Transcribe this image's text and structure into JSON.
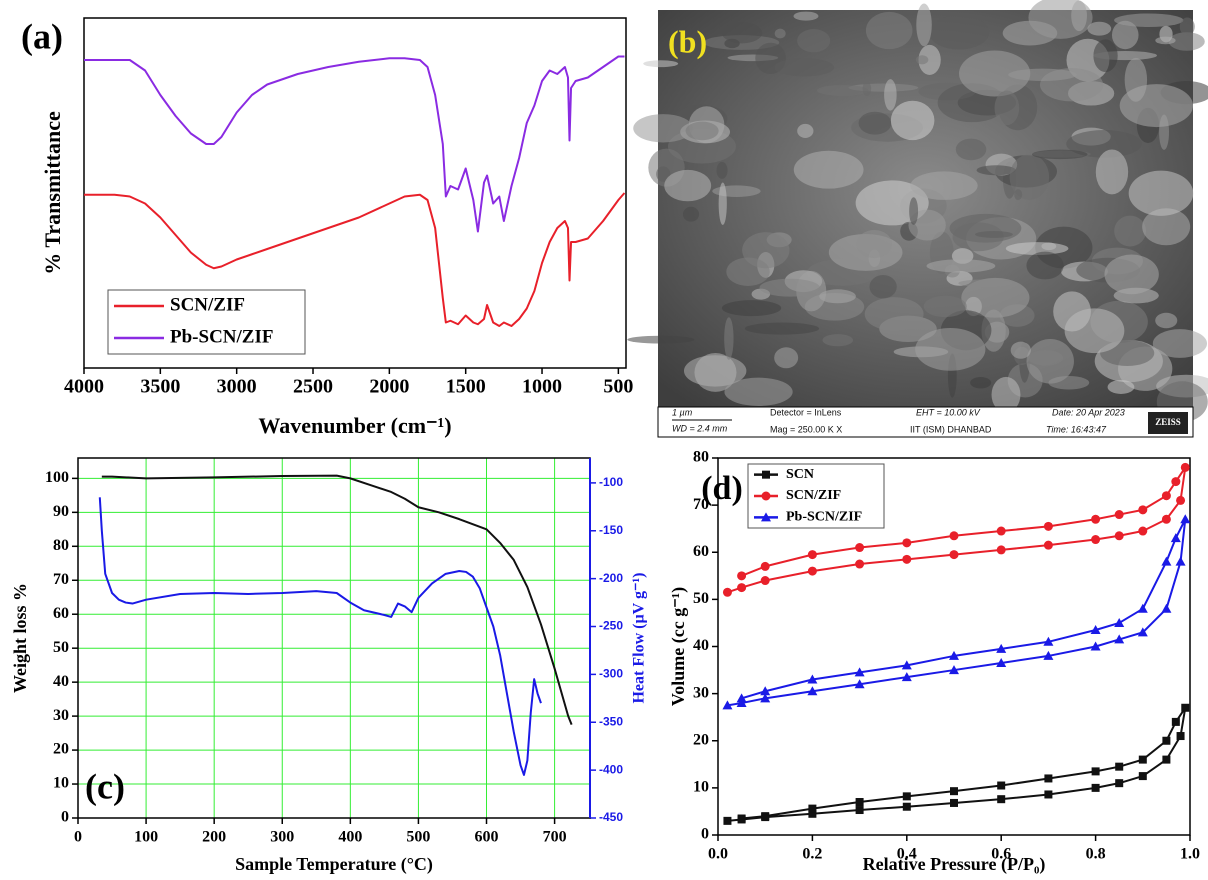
{
  "chart_data": [
    {
      "type": "line",
      "annotation": "(a)",
      "x_label": "Wavenumber (cm⁻¹)",
      "y_label": "% Transmittance",
      "xlim": [
        4000,
        450
      ],
      "xticks": [
        4000,
        3500,
        3000,
        2500,
        2000,
        1500,
        1000,
        500
      ],
      "ylim": [
        0,
        100
      ],
      "legend": "lower left",
      "grid": false,
      "x": [
        4000,
        3800,
        3700,
        3600,
        3500,
        3400,
        3300,
        3200,
        3150,
        3100,
        3000,
        2900,
        2800,
        2600,
        2400,
        2200,
        2000,
        1900,
        1800,
        1750,
        1700,
        1650,
        1630,
        1600,
        1550,
        1500,
        1450,
        1420,
        1380,
        1360,
        1320,
        1280,
        1250,
        1200,
        1150,
        1100,
        1050,
        1000,
        950,
        900,
        850,
        830,
        820,
        810,
        780,
        700,
        600,
        500,
        460
      ],
      "series": [
        {
          "name": "SCN/ZIF",
          "color": "#e8202a",
          "values": [
            49.5,
            49.5,
            49,
            47,
            43,
            38,
            33,
            29.5,
            28.5,
            29,
            31,
            32.5,
            34,
            37,
            40,
            43,
            47,
            49,
            49.5,
            48,
            40,
            20,
            13,
            13.5,
            12.5,
            15,
            13,
            12.5,
            14,
            18,
            13,
            12,
            13,
            12,
            14,
            17,
            22,
            30,
            36,
            40,
            42,
            40,
            25,
            36,
            36,
            37,
            42,
            48,
            50
          ]
        },
        {
          "name": "Pb-SCN/ZIF",
          "color": "#8a2be2",
          "values": [
            88,
            88,
            88,
            85,
            78,
            72,
            67,
            64,
            64,
            66,
            73,
            78,
            81,
            84,
            86,
            87.5,
            88.5,
            88.5,
            88,
            86,
            78,
            64,
            49,
            52,
            51,
            57,
            48,
            39,
            53,
            55,
            47,
            49,
            42,
            52,
            60,
            70,
            75,
            82,
            85,
            84,
            86,
            83,
            65,
            80,
            82,
            83,
            86,
            89,
            89
          ]
        }
      ]
    },
    {
      "type": "line",
      "annotation": "(c)",
      "x_label": "Sample Temperature (°C)",
      "y_label": "Weight loss %",
      "y2_label": "Heat Flow (µV g⁻¹)",
      "xlim": [
        0,
        752
      ],
      "xticks": [
        0,
        100,
        200,
        300,
        400,
        500,
        600,
        700
      ],
      "ylim": [
        0,
        106
      ],
      "yticks": [
        0,
        10,
        20,
        30,
        40,
        50,
        60,
        70,
        80,
        90,
        100
      ],
      "y2lim": [
        -450,
        -74
      ],
      "y2ticks": [
        -100,
        -150,
        -200,
        -250,
        -300,
        -350,
        -400,
        -450
      ],
      "grid": true,
      "grid_color": "#33ee33",
      "series": [
        {
          "color": "#111111",
          "x": [
            35,
            50,
            100,
            200,
            300,
            380,
            400,
            430,
            460,
            480,
            500,
            530,
            560,
            600,
            620,
            640,
            660,
            680,
            700,
            720,
            725
          ],
          "values": [
            100.5,
            100.5,
            100,
            100.3,
            100.7,
            100.8,
            100,
            98,
            96,
            94,
            91.5,
            90,
            88,
            85,
            81,
            76,
            68,
            57,
            44,
            30,
            27.5
          ]
        },
        {
          "color": "#1a1ae6",
          "axis": "y2",
          "x": [
            32,
            35,
            40,
            50,
            60,
            70,
            80,
            100,
            150,
            200,
            250,
            300,
            350,
            380,
            400,
            420,
            450,
            460,
            470,
            480,
            490,
            500,
            520,
            540,
            560,
            570,
            580,
            590,
            600,
            610,
            620,
            630,
            640,
            650,
            655,
            660,
            665,
            670,
            675,
            680
          ],
          "values": [
            -115,
            -150,
            -195,
            -215,
            -222,
            -225,
            -226,
            -222,
            -216,
            -215,
            -216,
            -215,
            -213,
            -215,
            -225,
            -233,
            -238,
            -240,
            -226,
            -229,
            -235,
            -220,
            -205,
            -195,
            -192,
            -193,
            -198,
            -210,
            -230,
            -250,
            -280,
            -320,
            -360,
            -395,
            -405,
            -390,
            -340,
            -305,
            -320,
            -330
          ]
        }
      ]
    },
    {
      "type": "line",
      "annotation": "(d)",
      "x_label": "Relative Pressure (P/P₀)",
      "y_label": "Volume (cc g⁻¹)",
      "xlim": [
        0,
        1
      ],
      "xticks": [
        {
          "value": 0,
          "label": "0.0"
        },
        0.2,
        0.4,
        0.6,
        0.8,
        {
          "value": 1,
          "label": "1.0"
        }
      ],
      "ylim": [
        0,
        80
      ],
      "yticks": [
        0,
        10,
        20,
        30,
        40,
        50,
        60,
        70,
        80
      ],
      "legend": "upper left",
      "grid": false,
      "x": [
        0.02,
        0.05,
        0.1,
        0.2,
        0.3,
        0.4,
        0.5,
        0.6,
        0.7,
        0.8,
        0.85,
        0.9,
        0.95,
        0.98,
        0.99,
        0.97,
        0.95,
        0.9,
        0.85,
        0.8,
        0.7,
        0.6,
        0.5,
        0.4,
        0.3,
        0.2,
        0.1,
        0.05
      ],
      "series": [
        {
          "name": "SCN",
          "color": "#111111",
          "marker": "square",
          "values": [
            3,
            3.3,
            3.8,
            4.5,
            5.3,
            6,
            6.8,
            7.6,
            8.6,
            10,
            11,
            12.5,
            16,
            21,
            27,
            24,
            20,
            16,
            14.5,
            13.5,
            12,
            10.5,
            9.3,
            8.2,
            7,
            5.6,
            4,
            3.5
          ]
        },
        {
          "name": "SCN/ZIF",
          "color": "#e8202a",
          "marker": "circle",
          "values": [
            51.5,
            52.5,
            54,
            56,
            57.5,
            58.5,
            59.5,
            60.5,
            61.5,
            62.7,
            63.5,
            64.5,
            67,
            71,
            78,
            75,
            72,
            69,
            68,
            67,
            65.5,
            64.5,
            63.5,
            62,
            61,
            59.5,
            57,
            55
          ]
        },
        {
          "name": "Pb-SCN/ZIF",
          "color": "#1a1ae6",
          "marker": "triangle",
          "values": [
            27.5,
            28,
            29,
            30.5,
            32,
            33.5,
            35,
            36.5,
            38,
            40,
            41.5,
            43,
            48,
            58,
            67,
            63,
            58,
            48,
            45,
            43.5,
            41,
            39.5,
            38,
            36,
            34.5,
            33,
            30.5,
            29
          ]
        }
      ]
    }
  ],
  "sem_image": {
    "label": "(b)",
    "scale": "1 µm",
    "wd": "WD =  2.4 mm",
    "detector": "Detector = InLens",
    "mag": "Mag =  250.00 K X",
    "eht": "EHT = 10.00 kV",
    "institute": "IIT (ISM) DHANBAD",
    "date": "Date: 20 Apr 2023",
    "time": "Time: 16:43:47",
    "brand": "ZEISS"
  }
}
